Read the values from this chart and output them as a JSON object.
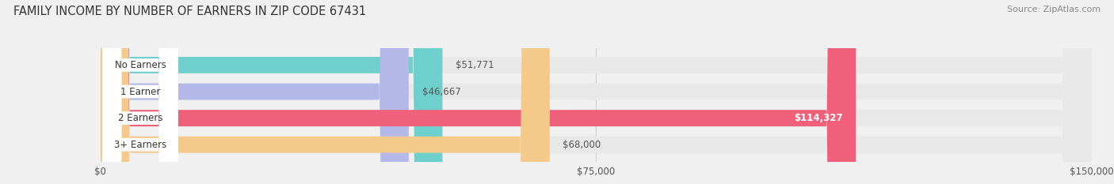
{
  "title": "FAMILY INCOME BY NUMBER OF EARNERS IN ZIP CODE 67431",
  "source": "Source: ZipAtlas.com",
  "categories": [
    "No Earners",
    "1 Earner",
    "2 Earners",
    "3+ Earners"
  ],
  "values": [
    51771,
    46667,
    114327,
    68000
  ],
  "bar_colors": [
    "#6ecfcc",
    "#b3b8e8",
    "#f0607a",
    "#f5c98a"
  ],
  "value_labels": [
    "$51,771",
    "$46,667",
    "$114,327",
    "$68,000"
  ],
  "xlim": [
    0,
    150000
  ],
  "xticks": [
    0,
    75000,
    150000
  ],
  "xtick_labels": [
    "$0",
    "$75,000",
    "$150,000"
  ],
  "background_color": "#f0f0f0",
  "bar_background": "#e8e8e8",
  "title_fontsize": 10.5,
  "source_fontsize": 8,
  "bar_height": 0.62,
  "figsize": [
    14.06,
    2.33
  ]
}
